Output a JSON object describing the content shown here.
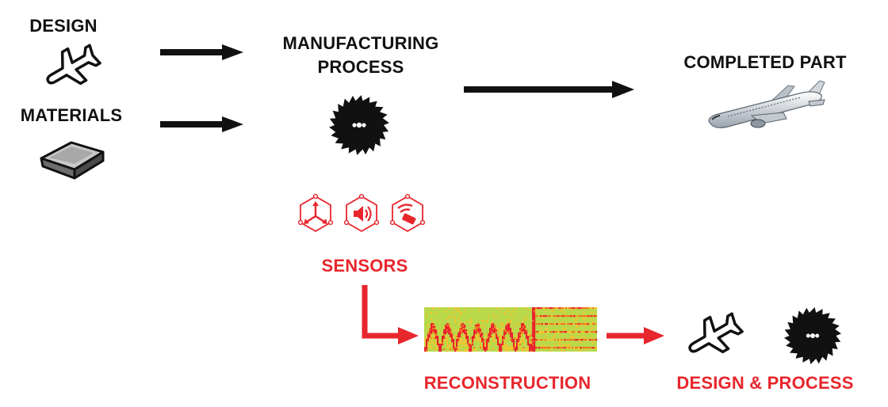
{
  "labels": {
    "design": "DESIGN",
    "materials": "MATERIALS",
    "manufacturing_line1": "MANUFACTURING",
    "manufacturing_line2": "PROCESS",
    "completed_part": "COMPLETED PART",
    "sensors": "SENSORS",
    "reconstruction": "RECONSTRUCTION",
    "design_process": "DESIGN & PROCESS"
  },
  "icons": {
    "design": "airplane-outline-icon",
    "materials": "metal-ingot-icon",
    "process": "saw-blade-icon",
    "part": "airliner-icon",
    "sensor_1": "accelerometer-axes-icon",
    "sensor_2": "speaker-sound-icon",
    "sensor_3": "wireless-signal-icon",
    "reconstruction": "spectrogram-image"
  },
  "colors": {
    "primary": "#111111",
    "accent": "#e8262d"
  }
}
